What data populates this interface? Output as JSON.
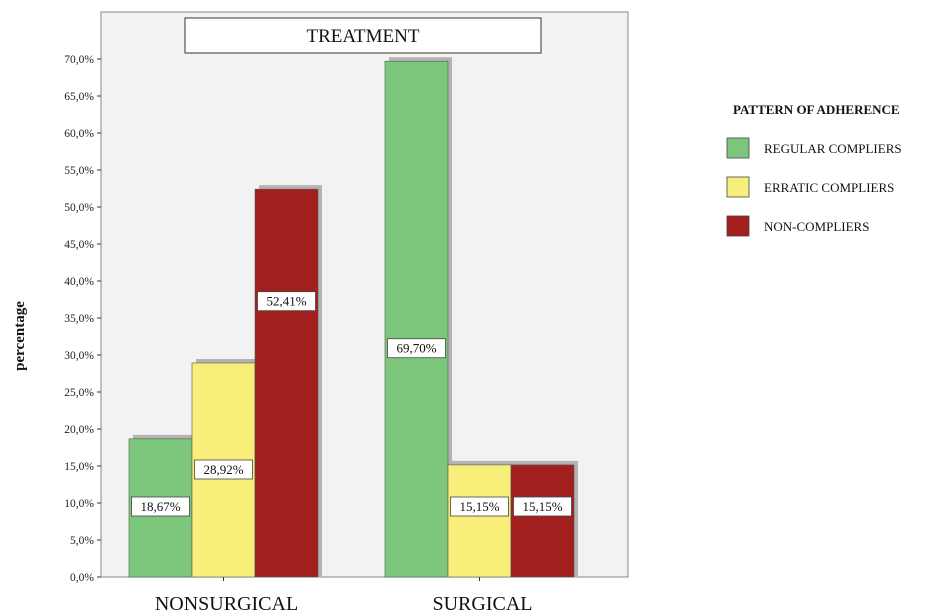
{
  "chart_data": {
    "type": "bar",
    "title": "TREATMENT",
    "ylabel": "percentage",
    "xlabel": "",
    "categories": [
      "NONSURGICAL",
      "SURGICAL"
    ],
    "legend_title": "PATTERN OF ADHERENCE",
    "legend_position": "right",
    "ylim": [
      0,
      70
    ],
    "ytick_labels": [
      "0,0%",
      "5,0%",
      "10,0%",
      "15,0%",
      "20,0%",
      "25,0%",
      "30,0%",
      "35,0%",
      "40,0%",
      "45,0%",
      "50,0%",
      "55,0%",
      "60,0%",
      "65,0%",
      "70,0%"
    ],
    "series": [
      {
        "name": "REGULAR COMPLIERS",
        "color": "#7dc77d",
        "values": [
          18.67,
          69.7
        ],
        "labels": [
          "18,67%",
          "69,70%"
        ]
      },
      {
        "name": "ERRATIC COMPLIERS",
        "color": "#f7ef7a",
        "values": [
          28.92,
          15.15
        ],
        "labels": [
          "28,92%",
          "15,15%"
        ]
      },
      {
        "name": "NON-COMPLIERS",
        "color": "#a4201f",
        "values": [
          52.41,
          15.15
        ],
        "labels": [
          "52,41%",
          "15,15%"
        ]
      }
    ],
    "grid": false,
    "plot_background": "#f2f2f2"
  }
}
